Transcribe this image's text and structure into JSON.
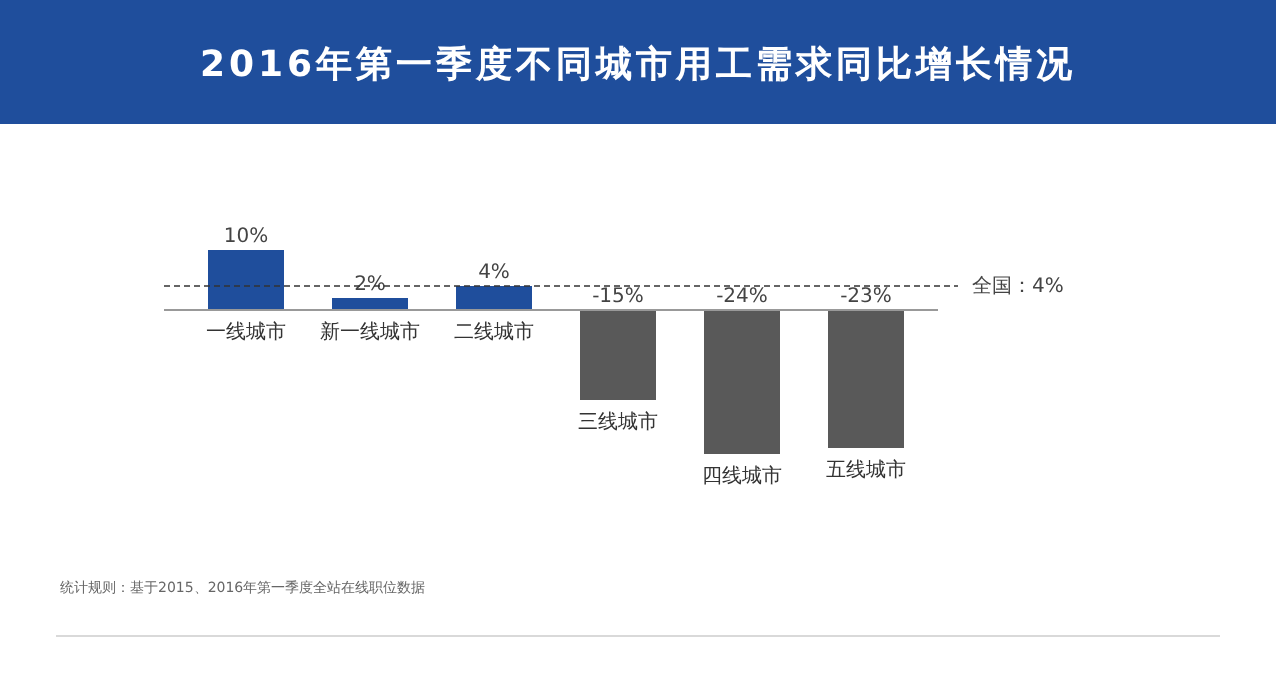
{
  "chart_data": {
    "type": "bar",
    "title": "2016年第一季度不同城市用工需求同比增长情况",
    "categories": [
      "一线城市",
      "新一线城市",
      "二线城市",
      "三线城市",
      "四线城市",
      "五线城市"
    ],
    "values": [
      10,
      2,
      4,
      -15,
      -24,
      -23
    ],
    "colors": [
      "#1f4e9c",
      "#1f4e9c",
      "#1f4e9c",
      "#595959",
      "#595959",
      "#595959"
    ],
    "value_labels": [
      "10%",
      "2%",
      "4%",
      "-15%",
      "-24%",
      "-23%"
    ],
    "ref_lines": [
      {
        "axis": "y",
        "value": 4,
        "label": "全国：4%",
        "line_style": "dashed",
        "color": "#333333"
      }
    ],
    "ylim": [
      -25,
      11
    ],
    "annotations": [
      "统计规则：基于2015、2016年第一季度全站在线职位数据"
    ]
  }
}
